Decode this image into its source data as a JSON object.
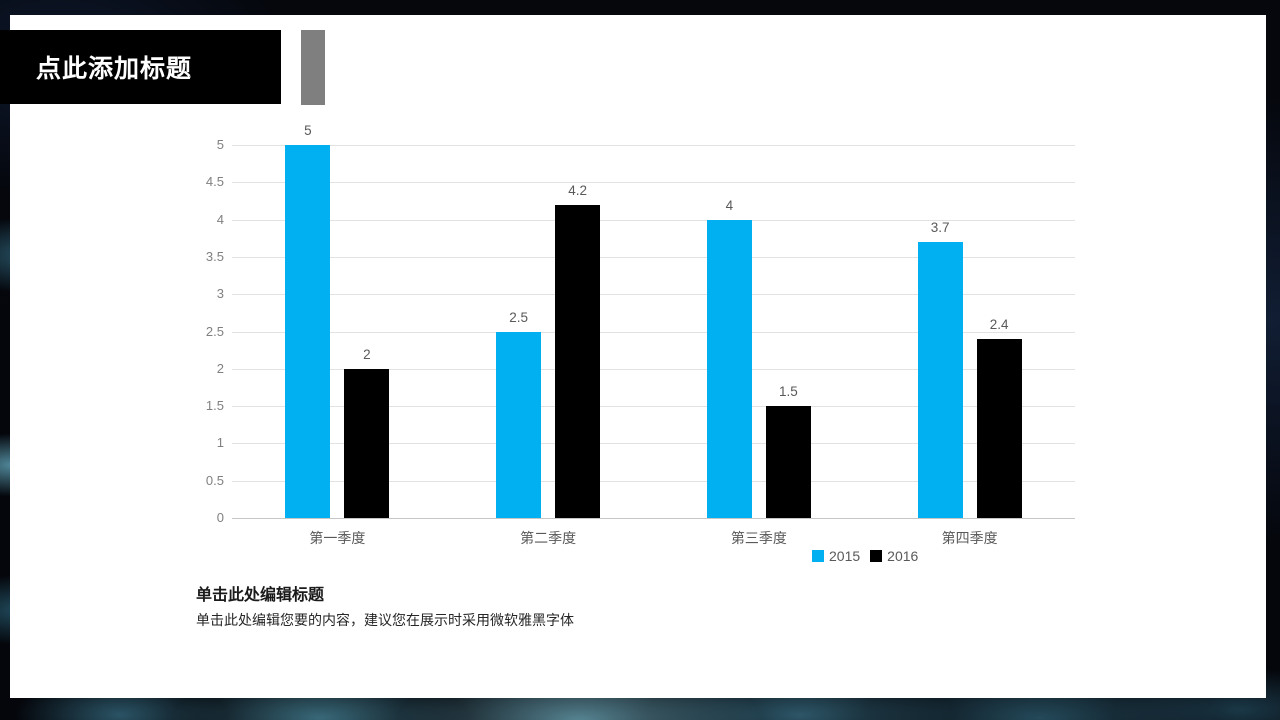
{
  "slide": {
    "title": "点此添加标题",
    "caption_title": "单击此处编辑标题",
    "caption_body": "单击此处编辑您要的内容，建议您在展示时采用微软雅黑字体"
  },
  "colors": {
    "series_2015": "#00B0F0",
    "series_2016": "#000000",
    "accent_gray": "#7F7F7F",
    "title_box_bg": "#000000",
    "tick_label": "#808080",
    "data_label": "#595959"
  },
  "chart_data": {
    "type": "bar",
    "title": "",
    "xlabel": "",
    "ylabel": "",
    "categories": [
      "第一季度",
      "第二季度",
      "第三季度",
      "第四季度"
    ],
    "series": [
      {
        "name": "2015",
        "color": "#00B0F0",
        "values": [
          5,
          2.5,
          4,
          3.7
        ]
      },
      {
        "name": "2016",
        "color": "#000000",
        "values": [
          2,
          4.2,
          1.5,
          2.4
        ]
      }
    ],
    "ylim": [
      0,
      5
    ],
    "yticks": [
      0,
      0.5,
      1,
      1.5,
      2,
      2.5,
      3,
      3.5,
      4,
      4.5,
      5
    ],
    "grid": true,
    "data_labels": true,
    "legend_position": "bottom-right"
  }
}
